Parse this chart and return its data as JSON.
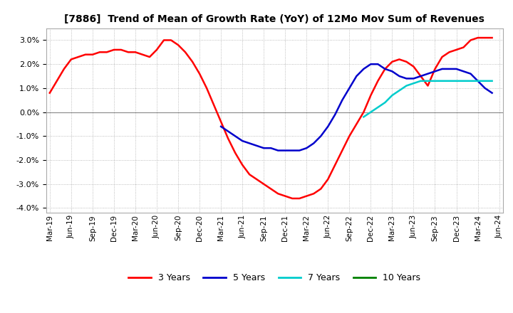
{
  "title": "[7886]  Trend of Mean of Growth Rate (YoY) of 12Mo Mov Sum of Revenues",
  "title_fontsize": 10,
  "ylim": [
    -0.042,
    0.035
  ],
  "yticks": [
    -0.04,
    -0.03,
    -0.02,
    -0.01,
    0.0,
    0.01,
    0.02,
    0.03
  ],
  "background_color": "#ffffff",
  "grid_color": "#aaaaaa",
  "series": {
    "3 Years": {
      "color": "#ff0000",
      "x": [
        0,
        1,
        2,
        3,
        4,
        5,
        6,
        7,
        8,
        9,
        10,
        11,
        12,
        13,
        14,
        15,
        16,
        17,
        18,
        19,
        20,
        21,
        22,
        23,
        24,
        25,
        26,
        27,
        28,
        29,
        30,
        31,
        32,
        33,
        34,
        35,
        36,
        37,
        38,
        39,
        40,
        41,
        42,
        43,
        44,
        45,
        46,
        47,
        48,
        49,
        50,
        51,
        52,
        53,
        54,
        55,
        56,
        57,
        58,
        59,
        60,
        61,
        62
      ],
      "y": [
        0.008,
        0.013,
        0.018,
        0.022,
        0.023,
        0.024,
        0.024,
        0.025,
        0.025,
        0.026,
        0.026,
        0.025,
        0.025,
        0.024,
        0.023,
        0.026,
        0.03,
        0.03,
        0.028,
        0.025,
        0.021,
        0.016,
        0.01,
        0.003,
        -0.004,
        -0.011,
        -0.017,
        -0.022,
        -0.026,
        -0.028,
        -0.03,
        -0.032,
        -0.034,
        -0.035,
        -0.036,
        -0.036,
        -0.035,
        -0.034,
        -0.032,
        -0.028,
        -0.022,
        -0.016,
        -0.01,
        -0.005,
        0.0,
        0.007,
        0.013,
        0.018,
        0.021,
        0.022,
        0.021,
        0.019,
        0.015,
        0.011,
        0.018,
        0.023,
        0.025,
        0.026,
        0.027,
        0.03,
        0.031,
        0.031,
        0.031
      ]
    },
    "5 Years": {
      "color": "#0000cc",
      "x": [
        24,
        25,
        26,
        27,
        28,
        29,
        30,
        31,
        32,
        33,
        34,
        35,
        36,
        37,
        38,
        39,
        40,
        41,
        42,
        43,
        44,
        45,
        46,
        47,
        48,
        49,
        50,
        51,
        52,
        53,
        54,
        55,
        56,
        57,
        58,
        59,
        60,
        61,
        62
      ],
      "y": [
        -0.006,
        -0.008,
        -0.01,
        -0.012,
        -0.013,
        -0.014,
        -0.015,
        -0.015,
        -0.016,
        -0.016,
        -0.016,
        -0.016,
        -0.015,
        -0.013,
        -0.01,
        -0.006,
        -0.001,
        0.005,
        0.01,
        0.015,
        0.018,
        0.02,
        0.02,
        0.018,
        0.017,
        0.015,
        0.014,
        0.014,
        0.015,
        0.016,
        0.017,
        0.018,
        0.018,
        0.018,
        0.017,
        0.016,
        0.013,
        0.01,
        0.008
      ]
    },
    "7 Years": {
      "color": "#00cccc",
      "x": [
        44,
        45,
        46,
        47,
        48,
        49,
        50,
        51,
        52,
        53,
        54,
        55,
        56,
        57,
        58,
        59,
        60,
        61,
        62
      ],
      "y": [
        -0.002,
        0.0,
        0.002,
        0.004,
        0.007,
        0.009,
        0.011,
        0.012,
        0.013,
        0.013,
        0.013,
        0.013,
        0.013,
        0.013,
        0.013,
        0.013,
        0.013,
        0.013,
        0.013
      ]
    },
    "10 Years": {
      "color": "#008000",
      "x": [],
      "y": []
    }
  },
  "x_tick_labels": [
    "Mar-19",
    "Jun-19",
    "Sep-19",
    "Dec-19",
    "Mar-20",
    "Jun-20",
    "Sep-20",
    "Dec-20",
    "Mar-21",
    "Jun-21",
    "Sep-21",
    "Dec-21",
    "Mar-22",
    "Jun-22",
    "Sep-22",
    "Dec-22",
    "Mar-23",
    "Jun-23",
    "Sep-23",
    "Dec-23",
    "Mar-24",
    "Jun-24"
  ],
  "x_tick_positions": [
    0,
    3,
    6,
    9,
    12,
    15,
    18,
    21,
    24,
    27,
    30,
    33,
    36,
    39,
    42,
    45,
    48,
    51,
    54,
    57,
    60,
    63
  ],
  "legend_labels": [
    "3 Years",
    "5 Years",
    "7 Years",
    "10 Years"
  ],
  "legend_colors": [
    "#ff0000",
    "#0000cc",
    "#00cccc",
    "#008000"
  ]
}
